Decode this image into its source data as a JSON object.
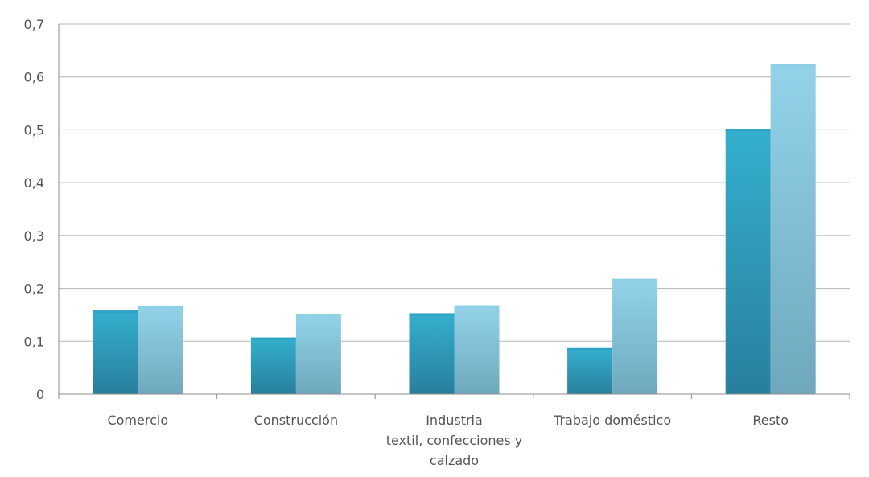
{
  "chart_data": {
    "type": "bar",
    "title": "",
    "xlabel": "",
    "ylabel": "",
    "ylim": [
      0,
      0.7
    ],
    "yticks": [
      0,
      0.1,
      0.2,
      0.3,
      0.4,
      0.5,
      0.6,
      0.7
    ],
    "ytick_labels": [
      "0",
      "0,1",
      "0,2",
      "0,3",
      "0,4",
      "0,5",
      "0,6",
      "0,7"
    ],
    "grid": true,
    "legend": "none",
    "categories": [
      [
        "Comercio"
      ],
      [
        "Construcción"
      ],
      [
        "Industria",
        "textil, confecciones y",
        "calzado"
      ],
      [
        "Trabajo doméstico"
      ],
      [
        "Resto"
      ]
    ],
    "series": [
      {
        "values": [
          0.158,
          0.107,
          0.153,
          0.087,
          0.502
        ],
        "color": "#2ea3c3"
      },
      {
        "values": [
          0.167,
          0.152,
          0.168,
          0.218,
          0.624
        ],
        "color": "#8fcfe6"
      }
    ]
  }
}
